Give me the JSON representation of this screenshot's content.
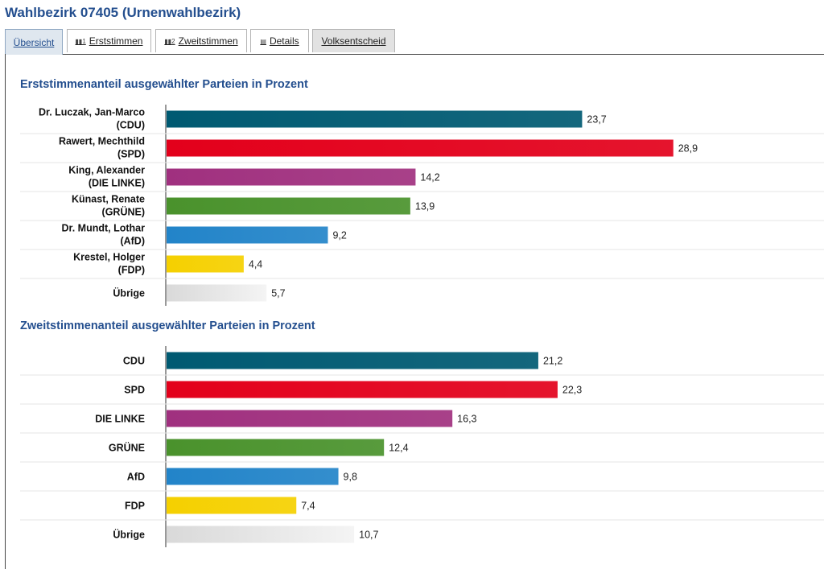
{
  "title": "Wahlbezirk 07405 (Urnenwahlbezirk)",
  "tabs": [
    {
      "label": "Übersicht",
      "icon": ""
    },
    {
      "label": "Erststimmen",
      "icon": "bar-chart-1-icon"
    },
    {
      "label": "Zweitstimmen",
      "icon": "bar-chart-2-icon"
    },
    {
      "label": "Details",
      "icon": "table-icon"
    },
    {
      "label": "Volksentscheid",
      "icon": ""
    }
  ],
  "chart_data": [
    {
      "type": "bar",
      "orientation": "horizontal",
      "title": "Erststimmenanteil ausgewählter Parteien in Prozent",
      "categories": [
        [
          "Dr. Luczak, Jan-Marco",
          "(CDU)"
        ],
        [
          "Rawert, Mechthild",
          "(SPD)"
        ],
        [
          "King, Alexander",
          "(DIE LINKE)"
        ],
        [
          "Künast, Renate",
          "(GRÜNE)"
        ],
        [
          "Dr. Mundt, Lothar",
          "(AfD)"
        ],
        [
          "Krestel, Holger",
          "(FDP)"
        ],
        [
          "Übrige"
        ]
      ],
      "values": [
        23.7,
        28.9,
        14.2,
        13.9,
        9.2,
        4.4,
        5.7
      ],
      "value_labels": [
        "23,7",
        "28,9",
        "14,2",
        "13,9",
        "9,2",
        "4,4",
        "5,7"
      ],
      "colors": [
        "#005a72",
        "#e3001b",
        "#a0307f",
        "#4a922c",
        "#2284c9",
        "#f5d000",
        "#e0e0e0"
      ],
      "grid": false
    },
    {
      "type": "bar",
      "orientation": "horizontal",
      "title": "Zweitstimmenanteil ausgewählter Parteien in Prozent",
      "categories": [
        [
          "CDU"
        ],
        [
          "SPD"
        ],
        [
          "DIE LINKE"
        ],
        [
          "GRÜNE"
        ],
        [
          "AfD"
        ],
        [
          "FDP"
        ],
        [
          "Übrige"
        ]
      ],
      "values": [
        21.2,
        22.3,
        16.3,
        12.4,
        9.8,
        7.4,
        10.7
      ],
      "value_labels": [
        "21,2",
        "22,3",
        "16,3",
        "12,4",
        "9,8",
        "7,4",
        "10,7"
      ],
      "colors": [
        "#005a72",
        "#e3001b",
        "#a0307f",
        "#4a922c",
        "#2284c9",
        "#f5d000",
        "#e0e0e0"
      ],
      "grid": false
    }
  ]
}
